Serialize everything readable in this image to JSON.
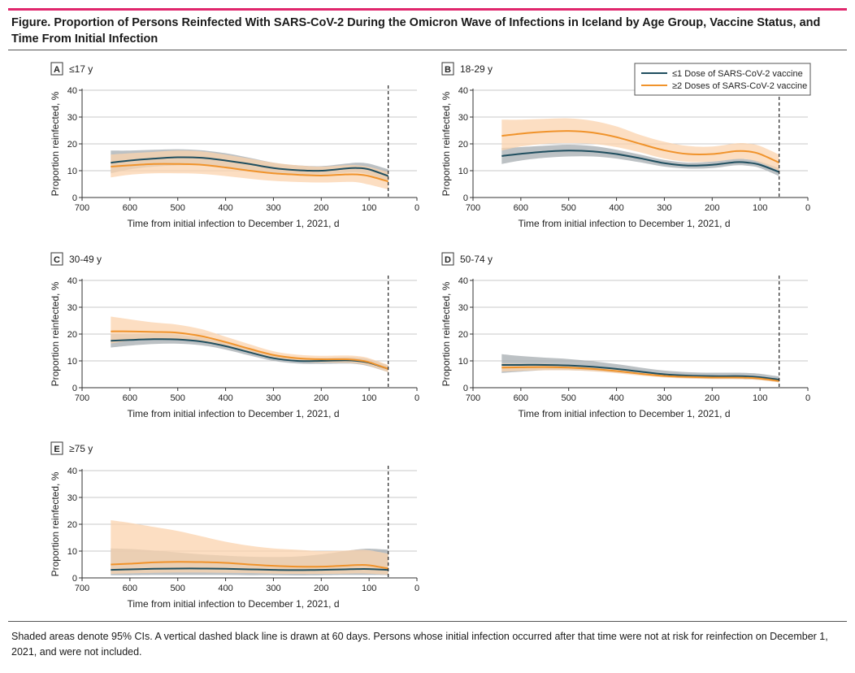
{
  "figure": {
    "title": "Figure. Proportion of Persons Reinfected With SARS-CoV-2 During the Omicron Wave of Infections in Iceland by Age Group, Vaccine Status, and Time From Initial Infection",
    "caption": "Shaded areas denote 95% CIs. A vertical dashed black line is drawn at 60 days. Persons whose initial infection occurred after that time were not at risk for reinfection on December 1, 2021, and were not included."
  },
  "legend": {
    "placement": "top-right of panel B",
    "entries": [
      {
        "label": "≤1 Dose of SARS-CoV-2 vaccine",
        "color": "#1f4e5f"
      },
      {
        "label": "≥2 Doses of SARS-CoV-2 vaccine",
        "color": "#f0932b"
      }
    ]
  },
  "colors": {
    "dark_line": "#1f4e5f",
    "dark_band": "#a5acb0",
    "orange_line": "#f0932b",
    "orange_band": "#fbd3ad",
    "accent_rule": "#e0276d"
  },
  "chart_data": [
    {
      "type": "line",
      "panel": "A",
      "panel_title": "≤17 y",
      "xlabel": "Time from initial infection to December 1, 2021, d",
      "ylabel": "Proportion reinfected, %",
      "xlim": [
        700,
        0
      ],
      "ylim": [
        0,
        40
      ],
      "x_ticks": [
        700,
        600,
        500,
        400,
        300,
        200,
        100,
        0
      ],
      "y_ticks": [
        0,
        10,
        20,
        30,
        40
      ],
      "reference_line_x": 60,
      "x": [
        640,
        600,
        550,
        500,
        450,
        400,
        350,
        300,
        250,
        200,
        150,
        125,
        100,
        60
      ],
      "series": [
        {
          "name": "≤1 Dose of SARS-CoV-2 vaccine",
          "values": [
            13,
            13.8,
            14.5,
            15,
            14.8,
            13.8,
            12.5,
            11,
            10.2,
            10,
            10.8,
            11,
            10.5,
            8
          ],
          "lower": [
            9,
            10.5,
            11.5,
            12,
            12,
            11.2,
            10.3,
            9.2,
            8.8,
            8.6,
            9.2,
            9.3,
            8.6,
            6
          ],
          "upper": [
            17.5,
            17.5,
            17.8,
            18,
            17.6,
            16.5,
            14.8,
            13,
            12,
            11.7,
            12.6,
            13,
            12.6,
            10.5
          ]
        },
        {
          "name": "≥2 Doses of SARS-CoV-2 vaccine",
          "values": [
            11.5,
            12,
            12.5,
            12.5,
            12.2,
            11.2,
            10,
            9,
            8.5,
            8.2,
            8.6,
            8.6,
            8,
            6
          ],
          "lower": [
            7.5,
            8.5,
            9,
            9,
            8.8,
            8,
            7,
            6.2,
            5.8,
            5.6,
            5.8,
            5.7,
            4.8,
            3
          ],
          "upper": [
            16,
            16.5,
            17,
            17.5,
            17.2,
            16,
            14.5,
            13,
            12,
            11.5,
            12,
            12,
            11.4,
            9.5
          ]
        }
      ]
    },
    {
      "type": "line",
      "panel": "B",
      "panel_title": "18-29 y",
      "xlabel": "Time from initial infection to December 1, 2021, d",
      "ylabel": "Proportion reinfected, %",
      "xlim": [
        700,
        0
      ],
      "ylim": [
        0,
        40
      ],
      "x_ticks": [
        700,
        600,
        500,
        400,
        300,
        200,
        100,
        0
      ],
      "y_ticks": [
        0,
        10,
        20,
        30,
        40
      ],
      "reference_line_x": 60,
      "x": [
        640,
        600,
        550,
        500,
        450,
        400,
        350,
        300,
        250,
        200,
        150,
        125,
        100,
        60
      ],
      "series": [
        {
          "name": "≤1 Dose of SARS-CoV-2 vaccine",
          "values": [
            15.5,
            16.3,
            17.1,
            17.5,
            17.2,
            16.2,
            14.6,
            12.8,
            11.9,
            12.2,
            13.2,
            13,
            12.2,
            9.5
          ],
          "lower": [
            12.5,
            13.8,
            14.8,
            15.3,
            15.3,
            14.5,
            13.1,
            11.5,
            10.8,
            11,
            12,
            11.8,
            11,
            8
          ],
          "upper": [
            18.5,
            18.8,
            19.3,
            19.7,
            19.2,
            17.8,
            16,
            14,
            13,
            13.4,
            14.4,
            14.2,
            13.4,
            11
          ]
        },
        {
          "name": "≥2 Doses of SARS-CoV-2 vaccine",
          "values": [
            23,
            23.8,
            24.5,
            24.8,
            24.2,
            22.5,
            20,
            17.6,
            16.2,
            16.2,
            17.3,
            17.2,
            16.2,
            13
          ],
          "lower": [
            17.5,
            19,
            20,
            20.3,
            20,
            18.8,
            16.8,
            14.5,
            13.3,
            13.4,
            14.3,
            14.2,
            13,
            10
          ],
          "upper": [
            29,
            29,
            29.3,
            29.5,
            28.6,
            26.5,
            23.3,
            20.8,
            19.2,
            19,
            20.2,
            20.1,
            19.2,
            16
          ]
        }
      ]
    },
    {
      "type": "line",
      "panel": "C",
      "panel_title": "30-49 y",
      "xlabel": "Time from initial infection to December 1, 2021, d",
      "ylabel": "Proportion reinfected, %",
      "xlim": [
        700,
        0
      ],
      "ylim": [
        0,
        40
      ],
      "x_ticks": [
        700,
        600,
        500,
        400,
        300,
        200,
        100,
        0
      ],
      "y_ticks": [
        0,
        10,
        20,
        30,
        40
      ],
      "reference_line_x": 60,
      "x": [
        640,
        600,
        550,
        500,
        450,
        400,
        350,
        300,
        250,
        200,
        150,
        125,
        100,
        60
      ],
      "series": [
        {
          "name": "≤1 Dose of SARS-CoV-2 vaccine",
          "values": [
            17.5,
            17.8,
            18.1,
            18,
            17.2,
            15.5,
            13.2,
            11,
            10,
            10,
            10.2,
            10,
            9.3,
            7
          ],
          "lower": [
            15,
            15.7,
            16.3,
            16.4,
            15.8,
            14.2,
            12,
            10,
            9,
            8.9,
            9,
            8.8,
            8,
            5.8
          ],
          "upper": [
            20,
            19.9,
            20,
            19.7,
            18.7,
            16.8,
            14.4,
            12,
            11,
            11.1,
            11.4,
            11.2,
            10.6,
            8.3
          ]
        },
        {
          "name": "≥2 Doses of SARS-CoV-2 vaccine",
          "values": [
            21,
            21,
            20.8,
            20.5,
            19.2,
            17,
            14.5,
            12.2,
            11,
            10.6,
            10.6,
            10.3,
            9.5,
            7
          ],
          "lower": [
            16.5,
            17.5,
            18,
            18,
            17.2,
            15.4,
            13.1,
            11,
            9.8,
            9.4,
            9.3,
            9,
            8.2,
            5.8
          ],
          "upper": [
            26.5,
            25.5,
            24.3,
            23.5,
            21.8,
            19,
            16.2,
            13.6,
            12.3,
            11.9,
            12,
            11.8,
            11,
            8.5
          ]
        }
      ]
    },
    {
      "type": "line",
      "panel": "D",
      "panel_title": "50-74 y",
      "xlabel": "Time from initial infection to December 1, 2021, d",
      "ylabel": "Proportion reinfected, %",
      "xlim": [
        700,
        0
      ],
      "ylim": [
        0,
        40
      ],
      "x_ticks": [
        700,
        600,
        500,
        400,
        300,
        200,
        100,
        0
      ],
      "y_ticks": [
        0,
        10,
        20,
        30,
        40
      ],
      "reference_line_x": 60,
      "x": [
        640,
        600,
        550,
        500,
        450,
        400,
        350,
        300,
        250,
        200,
        150,
        125,
        100,
        60
      ],
      "series": [
        {
          "name": "≤1 Dose of SARS-CoV-2 vaccine",
          "values": [
            8.5,
            8.5,
            8.5,
            8.3,
            7.8,
            7,
            6,
            5,
            4.5,
            4.3,
            4.3,
            4.2,
            3.9,
            3
          ],
          "lower": [
            5.5,
            6,
            6.5,
            6.5,
            6.2,
            5.6,
            4.8,
            4,
            3.5,
            3.3,
            3.2,
            3.1,
            2.9,
            2
          ],
          "upper": [
            12.5,
            11.8,
            11.2,
            10.7,
            9.9,
            8.8,
            7.5,
            6.4,
            5.8,
            5.6,
            5.6,
            5.5,
            5.2,
            4.2
          ]
        },
        {
          "name": "≥2 Doses of SARS-CoV-2 vaccine",
          "values": [
            7.5,
            7.6,
            7.7,
            7.5,
            7,
            6.2,
            5.2,
            4.4,
            4,
            3.8,
            3.8,
            3.7,
            3.4,
            2.5
          ],
          "lower": [
            6,
            6.3,
            6.5,
            6.5,
            6.1,
            5.4,
            4.5,
            3.8,
            3.4,
            3.2,
            3.2,
            3.1,
            2.8,
            2
          ],
          "upper": [
            9,
            8.9,
            8.9,
            8.6,
            8,
            7.1,
            6,
            5.1,
            4.6,
            4.4,
            4.4,
            4.3,
            4,
            3.2
          ]
        }
      ]
    },
    {
      "type": "line",
      "panel": "E",
      "panel_title": "≥75 y",
      "xlabel": "Time from initial infection to December 1, 2021, d",
      "ylabel": "Proportion reinfected, %",
      "xlim": [
        700,
        0
      ],
      "ylim": [
        0,
        40
      ],
      "x_ticks": [
        700,
        600,
        500,
        400,
        300,
        200,
        100,
        0
      ],
      "y_ticks": [
        0,
        10,
        20,
        30,
        40
      ],
      "reference_line_x": 60,
      "x": [
        640,
        600,
        550,
        500,
        450,
        400,
        350,
        300,
        250,
        200,
        150,
        125,
        100,
        60
      ],
      "series": [
        {
          "name": "≤1 Dose of SARS-CoV-2 vaccine",
          "values": [
            3,
            3.2,
            3.4,
            3.5,
            3.5,
            3.4,
            3.2,
            3,
            2.9,
            3,
            3.2,
            3.3,
            3.3,
            3
          ],
          "lower": [
            1,
            1,
            1.1,
            1.1,
            1.1,
            1.1,
            1,
            1,
            0.9,
            1,
            1.1,
            1.1,
            1.1,
            1
          ],
          "upper": [
            11,
            10.8,
            10.2,
            9.5,
            8.8,
            8.3,
            7.9,
            7.8,
            8,
            8.8,
            10,
            10.6,
            10.9,
            10.5
          ]
        },
        {
          "name": "≥2 Doses of SARS-CoV-2 vaccine",
          "values": [
            5,
            5.3,
            5.8,
            6,
            5.9,
            5.6,
            5,
            4.5,
            4.2,
            4.2,
            4.6,
            4.8,
            4.7,
            3.5
          ],
          "lower": [
            1.5,
            1.7,
            1.9,
            2,
            2,
            1.9,
            1.8,
            1.6,
            1.5,
            1.5,
            1.6,
            1.7,
            1.6,
            1.2
          ],
          "upper": [
            21.5,
            20.5,
            19,
            17.5,
            15.5,
            13.5,
            12,
            11,
            10.5,
            10,
            10.2,
            10.4,
            10.3,
            9
          ]
        }
      ]
    }
  ]
}
